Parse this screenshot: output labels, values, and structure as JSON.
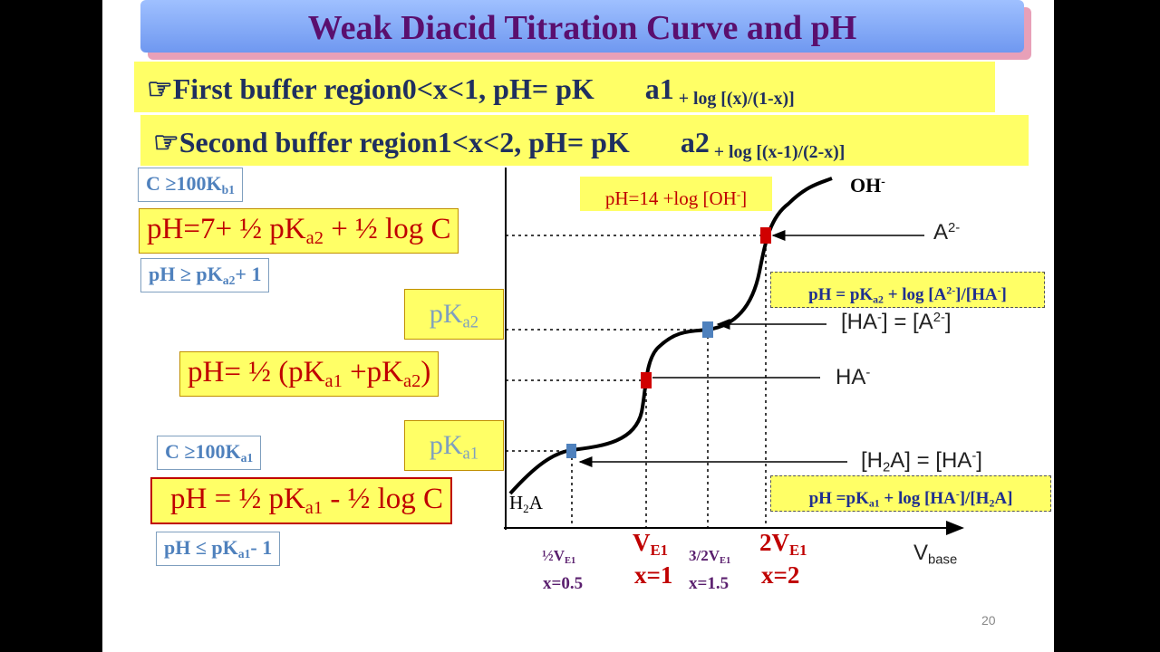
{
  "title": "Weak Diacid Titration Curve and pH",
  "buffer_regions": [
    [
      "☞First buffer region",
      "0<x<1, pH= pK",
      "a1",
      " + log [(x)/(1-x)]"
    ],
    [
      "☞Second buffer region",
      "1<x<2, pH= pK",
      "a2",
      " + log [(x-1)/(2-x)]"
    ]
  ],
  "left_notes": {
    "cond_b1": [
      "C ≥100K",
      "b1"
    ],
    "ph_basic": [
      "pH=7+ ½ pK",
      "a2",
      " + ½ log C"
    ],
    "ph_cond2": [
      "pH ≥ pK",
      "a2",
      "+ 1"
    ],
    "pka2": [
      "pK",
      "a2"
    ],
    "ph_mid": [
      "pH= ½ (pK",
      "a1",
      " +pK",
      "a2",
      ")"
    ],
    "pka1": [
      "pK",
      "a1"
    ],
    "cond_a1": [
      "C ≥100K",
      "a1"
    ],
    "ph_acid": [
      "pH = ½ pK",
      "a1",
      " - ½ log C"
    ],
    "ph_cond1": [
      "pH ≤ pK",
      "a1",
      "- 1"
    ]
  },
  "graph": {
    "oh_box": [
      "pH=14 +log [OH",
      "-",
      "]"
    ],
    "oh": [
      "OH",
      "-"
    ],
    "a2": [
      "A",
      "2-"
    ],
    "eq2_box": [
      "pH = pK",
      "a2",
      " + log [A",
      "2-",
      "]/[HA",
      "-",
      "]"
    ],
    "eq2": [
      "[HA",
      "-",
      "] = [A",
      "2-",
      "]"
    ],
    "ha": [
      "HA",
      "-"
    ],
    "eq1": [
      "[H",
      "2",
      "A] = [HA",
      "-",
      "]"
    ],
    "eq1_box": [
      "pH =pK",
      "a1",
      " + log [HA",
      "-",
      "]/[H",
      "2",
      "A]"
    ],
    "h2a": [
      "H",
      "2",
      "A"
    ],
    "x_axis_label": [
      "V",
      "base"
    ],
    "x_labels": [
      [
        "½V",
        "E1"
      ],
      [
        "V",
        "E1"
      ],
      [
        "3/2V",
        "E1"
      ],
      [
        "2V",
        "E1"
      ]
    ],
    "x_values": [
      "x=0.5",
      "x=1",
      "x=1.5",
      "x=2"
    ]
  },
  "page_number": "20"
}
